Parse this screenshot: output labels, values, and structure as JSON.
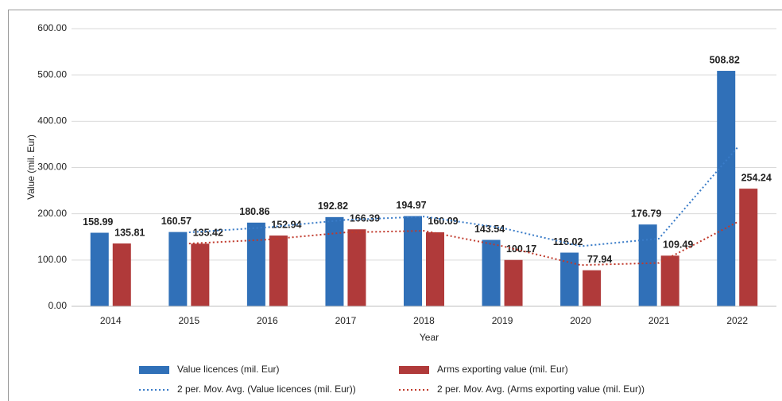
{
  "chart_data": {
    "type": "bar",
    "y_label": "Value (mil. Eur)",
    "x_label": "Year",
    "categories": [
      "2014",
      "2015",
      "2016",
      "2017",
      "2018",
      "2019",
      "2020",
      "2021",
      "2022"
    ],
    "series": [
      {
        "name": "Value licences (mil. Eur)",
        "type": "bar",
        "color": "#3070b8",
        "values": [
          158.99,
          160.57,
          180.86,
          192.82,
          194.97,
          143.54,
          116.02,
          176.79,
          508.82
        ]
      },
      {
        "name": "Arms exporting value (mil. Eur)",
        "type": "bar",
        "color": "#b03a3a",
        "values": [
          135.81,
          135.42,
          152.94,
          166.39,
          160.09,
          100.17,
          77.94,
          109.49,
          254.24
        ]
      },
      {
        "name": "2 per. Mov. Avg. (Value licences (mil. Eur))",
        "type": "line",
        "dash": "dotted",
        "color": "#3a7cc8",
        "values": [
          null,
          159.8,
          170.7,
          186.8,
          193.9,
          169.3,
          129.8,
          146.4,
          342.8
        ]
      },
      {
        "name": "2 per. Mov. Avg. (Arms exporting value (mil. Eur))",
        "type": "line",
        "dash": "dotted",
        "color": "#c0392b",
        "values": [
          null,
          135.6,
          144.2,
          159.7,
          163.2,
          130.1,
          89.1,
          93.7,
          181.9
        ]
      }
    ],
    "ylim": [
      0,
      600
    ],
    "yticks": [
      {
        "value": 0,
        "label": "0.00"
      },
      {
        "value": 100,
        "label": "100.00"
      },
      {
        "value": 200,
        "label": "200.00"
      },
      {
        "value": 300,
        "label": "300.00"
      },
      {
        "value": 400,
        "label": "400.00"
      },
      {
        "value": 500,
        "label": "500.00"
      },
      {
        "value": 600,
        "label": "600.00"
      }
    ],
    "grid": true,
    "legend": "bottom",
    "data_labels": true
  }
}
